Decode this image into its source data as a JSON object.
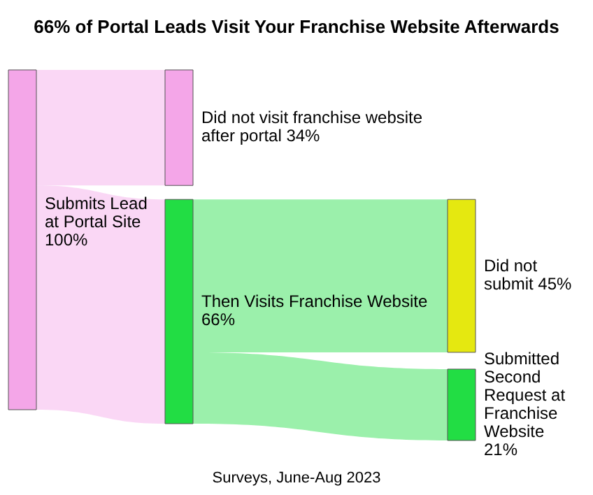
{
  "chart_data": {
    "type": "other",
    "title": "66% of Portal Leads Visit Your Franchise Website Afterwards",
    "categories": [
      "Submits Lead at Portal Site",
      "Did not visit franchise website after portal",
      "Then Visits Franchise Website",
      "Did not submit",
      "Submitted Second Request at Franchise Website"
    ],
    "values": [
      100,
      34,
      66,
      45,
      21
    ],
    "value_labels": [
      "100%",
      "34%",
      "66%",
      "45%",
      "21%"
    ],
    "colors": [
      "#f4a6e8",
      "#f4a6e8",
      "#22dd44",
      "#e5e810",
      "#22dd44"
    ],
    "annotations": [
      "Surveys, June-Aug 2023"
    ]
  }
}
